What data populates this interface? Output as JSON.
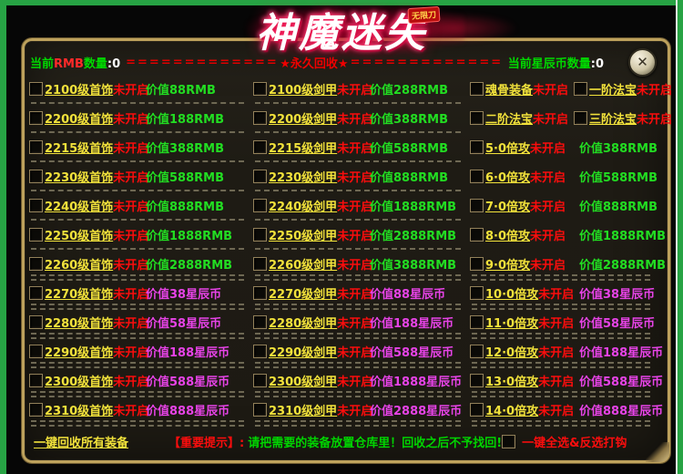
{
  "logo": {
    "title": "神魔迷失",
    "badge": "无限刀"
  },
  "close_label": "✕",
  "header": {
    "rmb": {
      "pre": "当前",
      "mid": "RMB",
      "post": "数量",
      "sep": ":",
      "value": "0"
    },
    "dashes_left": "====================",
    "banner": "★永久回收★",
    "dashes_right": "======================",
    "star": {
      "label": "当前星辰币数量",
      "sep": ":",
      "value": "0"
    }
  },
  "main": {
    "columns": [
      {
        "name": "jewelry",
        "rows": [
          {
            "sep": "single",
            "items": [
              {
                "label": "2100级首饰",
                "status": "未开启",
                "price": "价值88RMB",
                "currency": "rmb"
              }
            ]
          },
          {
            "sep": "single",
            "items": [
              {
                "label": "2200级首饰",
                "status": "未开启",
                "price": "价值188RMB",
                "currency": "rmb"
              }
            ]
          },
          {
            "sep": "single",
            "items": [
              {
                "label": "2215级首饰",
                "status": "未开启",
                "price": "价值388RMB",
                "currency": "rmb"
              }
            ]
          },
          {
            "sep": "single",
            "items": [
              {
                "label": "2230级首饰",
                "status": "未开启",
                "price": "价值588RMB",
                "currency": "rmb"
              }
            ]
          },
          {
            "sep": "single",
            "items": [
              {
                "label": "2240级首饰",
                "status": "未开启",
                "price": "价值888RMB",
                "currency": "rmb"
              }
            ]
          },
          {
            "sep": "single",
            "items": [
              {
                "label": "2250级首饰",
                "status": "未开启",
                "price": "价值1888RMB",
                "currency": "rmb"
              }
            ]
          },
          {
            "sep": "double",
            "items": [
              {
                "label": "2260级首饰",
                "status": "未开启",
                "price": "价值2888RMB",
                "currency": "rmb"
              }
            ]
          },
          {
            "sep": "double",
            "items": [
              {
                "label": "2270级首饰",
                "status": "未开启",
                "price": "价值38星辰币",
                "currency": "star"
              }
            ]
          },
          {
            "sep": "double",
            "items": [
              {
                "label": "2280级首饰",
                "status": "未开启",
                "price": "价值58星辰币",
                "currency": "star"
              }
            ]
          },
          {
            "sep": "double",
            "items": [
              {
                "label": "2290级首饰",
                "status": "未开启",
                "price": "价值188星辰币",
                "currency": "star"
              }
            ]
          },
          {
            "sep": "double",
            "items": [
              {
                "label": "2300级首饰",
                "status": "未开启",
                "price": "价值588星辰币",
                "currency": "star"
              }
            ]
          },
          {
            "sep": "double",
            "items": [
              {
                "label": "2310级首饰",
                "status": "未开启",
                "price": "价值888星辰币",
                "currency": "star"
              }
            ]
          }
        ]
      },
      {
        "name": "armor",
        "rows": [
          {
            "sep": "single",
            "items": [
              {
                "label": "2100级剑甲",
                "status": "未开启",
                "price": "价值288RMB",
                "currency": "rmb"
              }
            ]
          },
          {
            "sep": "single",
            "items": [
              {
                "label": "2200级剑甲",
                "status": "未开启",
                "price": "价值388RMB",
                "currency": "rmb"
              }
            ]
          },
          {
            "sep": "single",
            "items": [
              {
                "label": "2215级剑甲",
                "status": "未开启",
                "price": "价值588RMB",
                "currency": "rmb"
              }
            ]
          },
          {
            "sep": "single",
            "items": [
              {
                "label": "2230级剑甲",
                "status": "未开启",
                "price": "价值888RMB",
                "currency": "rmb"
              }
            ]
          },
          {
            "sep": "single",
            "items": [
              {
                "label": "2240级剑甲",
                "status": "未开启",
                "price": "价值1888RMB",
                "currency": "rmb"
              }
            ]
          },
          {
            "sep": "single",
            "items": [
              {
                "label": "2250级剑甲",
                "status": "未开启",
                "price": "价值2888RMB",
                "currency": "rmb"
              }
            ]
          },
          {
            "sep": "double",
            "items": [
              {
                "label": "2260级剑甲",
                "status": "未开启",
                "price": "价值3888RMB",
                "currency": "rmb"
              }
            ]
          },
          {
            "sep": "double",
            "items": [
              {
                "label": "2270级剑甲",
                "status": "未开启",
                "price": "价值88星辰币",
                "currency": "star"
              }
            ]
          },
          {
            "sep": "double",
            "items": [
              {
                "label": "2280级剑甲",
                "status": "未开启",
                "price": "价值188星辰币",
                "currency": "star"
              }
            ]
          },
          {
            "sep": "double",
            "items": [
              {
                "label": "2290级剑甲",
                "status": "未开启",
                "price": "价值588星辰币",
                "currency": "star"
              }
            ]
          },
          {
            "sep": "double",
            "items": [
              {
                "label": "2300级剑甲",
                "status": "未开启",
                "price": "价值1888星辰币",
                "currency": "star"
              }
            ]
          },
          {
            "sep": "double",
            "items": [
              {
                "label": "2310级剑甲",
                "status": "未开启",
                "price": "价值2888星辰币",
                "currency": "star"
              }
            ]
          }
        ]
      },
      {
        "name": "special",
        "rows": [
          {
            "sep": "none",
            "items": [
              {
                "label": "魂骨装备",
                "status": "未开启"
              },
              {
                "label": "一阶法宝",
                "status": "未开启"
              }
            ]
          },
          {
            "sep": "none",
            "items": [
              {
                "label": "二阶法宝",
                "status": "未开启"
              },
              {
                "label": "三阶法宝",
                "status": "未开启"
              }
            ]
          },
          {
            "sep": "none",
            "items": [
              {
                "label": "5·0倍攻",
                "status": "未开启",
                "price": "价值388RMB",
                "currency": "rmb"
              }
            ]
          },
          {
            "sep": "none",
            "items": [
              {
                "label": "6·0倍攻",
                "status": "未开启",
                "price": "价值588RMB",
                "currency": "rmb"
              }
            ]
          },
          {
            "sep": "none",
            "items": [
              {
                "label": "7·0倍攻",
                "status": "未开启",
                "price": "价值888RMB",
                "currency": "rmb"
              }
            ]
          },
          {
            "sep": "none",
            "items": [
              {
                "label": "8·0倍攻",
                "status": "未开启",
                "price": "价值1888RMB",
                "currency": "rmb"
              }
            ]
          },
          {
            "sep": "double",
            "items": [
              {
                "label": "9·0倍攻",
                "status": "未开启",
                "price": "价值2888RMB",
                "currency": "rmb"
              }
            ]
          },
          {
            "sep": "double",
            "items": [
              {
                "label": "10·0倍攻",
                "status": "未开启",
                "price": "价值38星辰币",
                "currency": "star"
              }
            ]
          },
          {
            "sep": "double",
            "items": [
              {
                "label": "11·0倍攻",
                "status": "未开启",
                "price": "价值58星辰币",
                "currency": "star"
              }
            ]
          },
          {
            "sep": "double",
            "items": [
              {
                "label": "12·0倍攻",
                "status": "未开启",
                "price": "价值188星辰币",
                "currency": "star"
              }
            ]
          },
          {
            "sep": "double",
            "items": [
              {
                "label": "13·0倍攻",
                "status": "未开启",
                "price": "价值588星辰币",
                "currency": "star"
              }
            ]
          },
          {
            "sep": "double",
            "items": [
              {
                "label": "14·0倍攻",
                "status": "未开启",
                "price": "价值888星辰币",
                "currency": "star"
              }
            ]
          }
        ]
      }
    ]
  },
  "footer": {
    "recycle_all": "一键回收所有装备",
    "notice_label": "【重要提示】:",
    "notice_text": "请把需要的装备放置仓库里！回收之后不予找回!",
    "select_all": "一键全选&反选打钩"
  }
}
